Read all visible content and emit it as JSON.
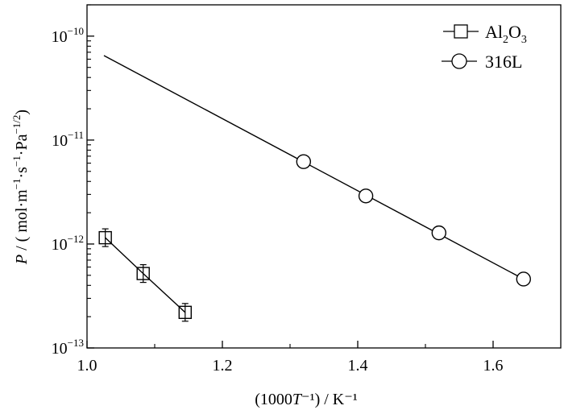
{
  "chart_data": {
    "type": "scatter",
    "title": "",
    "xlabel": "(1000T⁻¹) / K⁻¹",
    "xlabel_parts": [
      "(1000",
      "T",
      "⁻¹) / K⁻¹"
    ],
    "ylabel": "P / ( mol·m⁻¹·s⁻¹·Pa⁻¹ᐟ²)",
    "ylabel_parts": {
      "symbol": "P",
      "text": " / ( mol·m",
      "s1": "−1",
      "t2": "·s",
      "s2": "−1",
      "t3": "·Pa",
      "s3": "−1/2",
      "t4": ")"
    },
    "xlim": [
      1.0,
      1.7
    ],
    "ylim": [
      1e-13,
      2e-10
    ],
    "yscale": "log",
    "grid": false,
    "legend_position": "top-right",
    "xticks": [
      1.0,
      1.2,
      1.4,
      1.6
    ],
    "xtick_labels": [
      "1.0",
      "1.2",
      "1.4",
      "1.6"
    ],
    "yticks": [
      {
        "value": 1e-13,
        "base": "10",
        "exp": "−13"
      },
      {
        "value": 1e-12,
        "base": "10",
        "exp": "−12"
      },
      {
        "value": 1e-11,
        "base": "10",
        "exp": "−11"
      },
      {
        "value": 1e-10,
        "base": "10",
        "exp": "−10"
      }
    ],
    "series": [
      {
        "name": "Al2O3",
        "legend": {
          "base": "Al",
          "sub1": "2",
          "mid": "O",
          "sub2": "3"
        },
        "marker": "square",
        "x": [
          1.027,
          1.083,
          1.145
        ],
        "y": [
          1.15e-12,
          5.2e-13,
          2.2e-13
        ],
        "error_bars": true,
        "line": {
          "x": [
            1.027,
            1.083,
            1.145
          ],
          "y": [
            1.15e-12,
            5.2e-13,
            2.2e-13
          ]
        }
      },
      {
        "name": "316L",
        "legend": {
          "base": "316L"
        },
        "marker": "circle",
        "x": [
          1.32,
          1.412,
          1.52,
          1.645
        ],
        "y": [
          6.2e-12,
          2.9e-12,
          1.28e-12,
          4.6e-13
        ],
        "error_bars": false,
        "line": {
          "x": [
            1.025,
            1.645
          ],
          "y": [
            6.5e-11,
            4.6e-13
          ]
        }
      }
    ]
  }
}
